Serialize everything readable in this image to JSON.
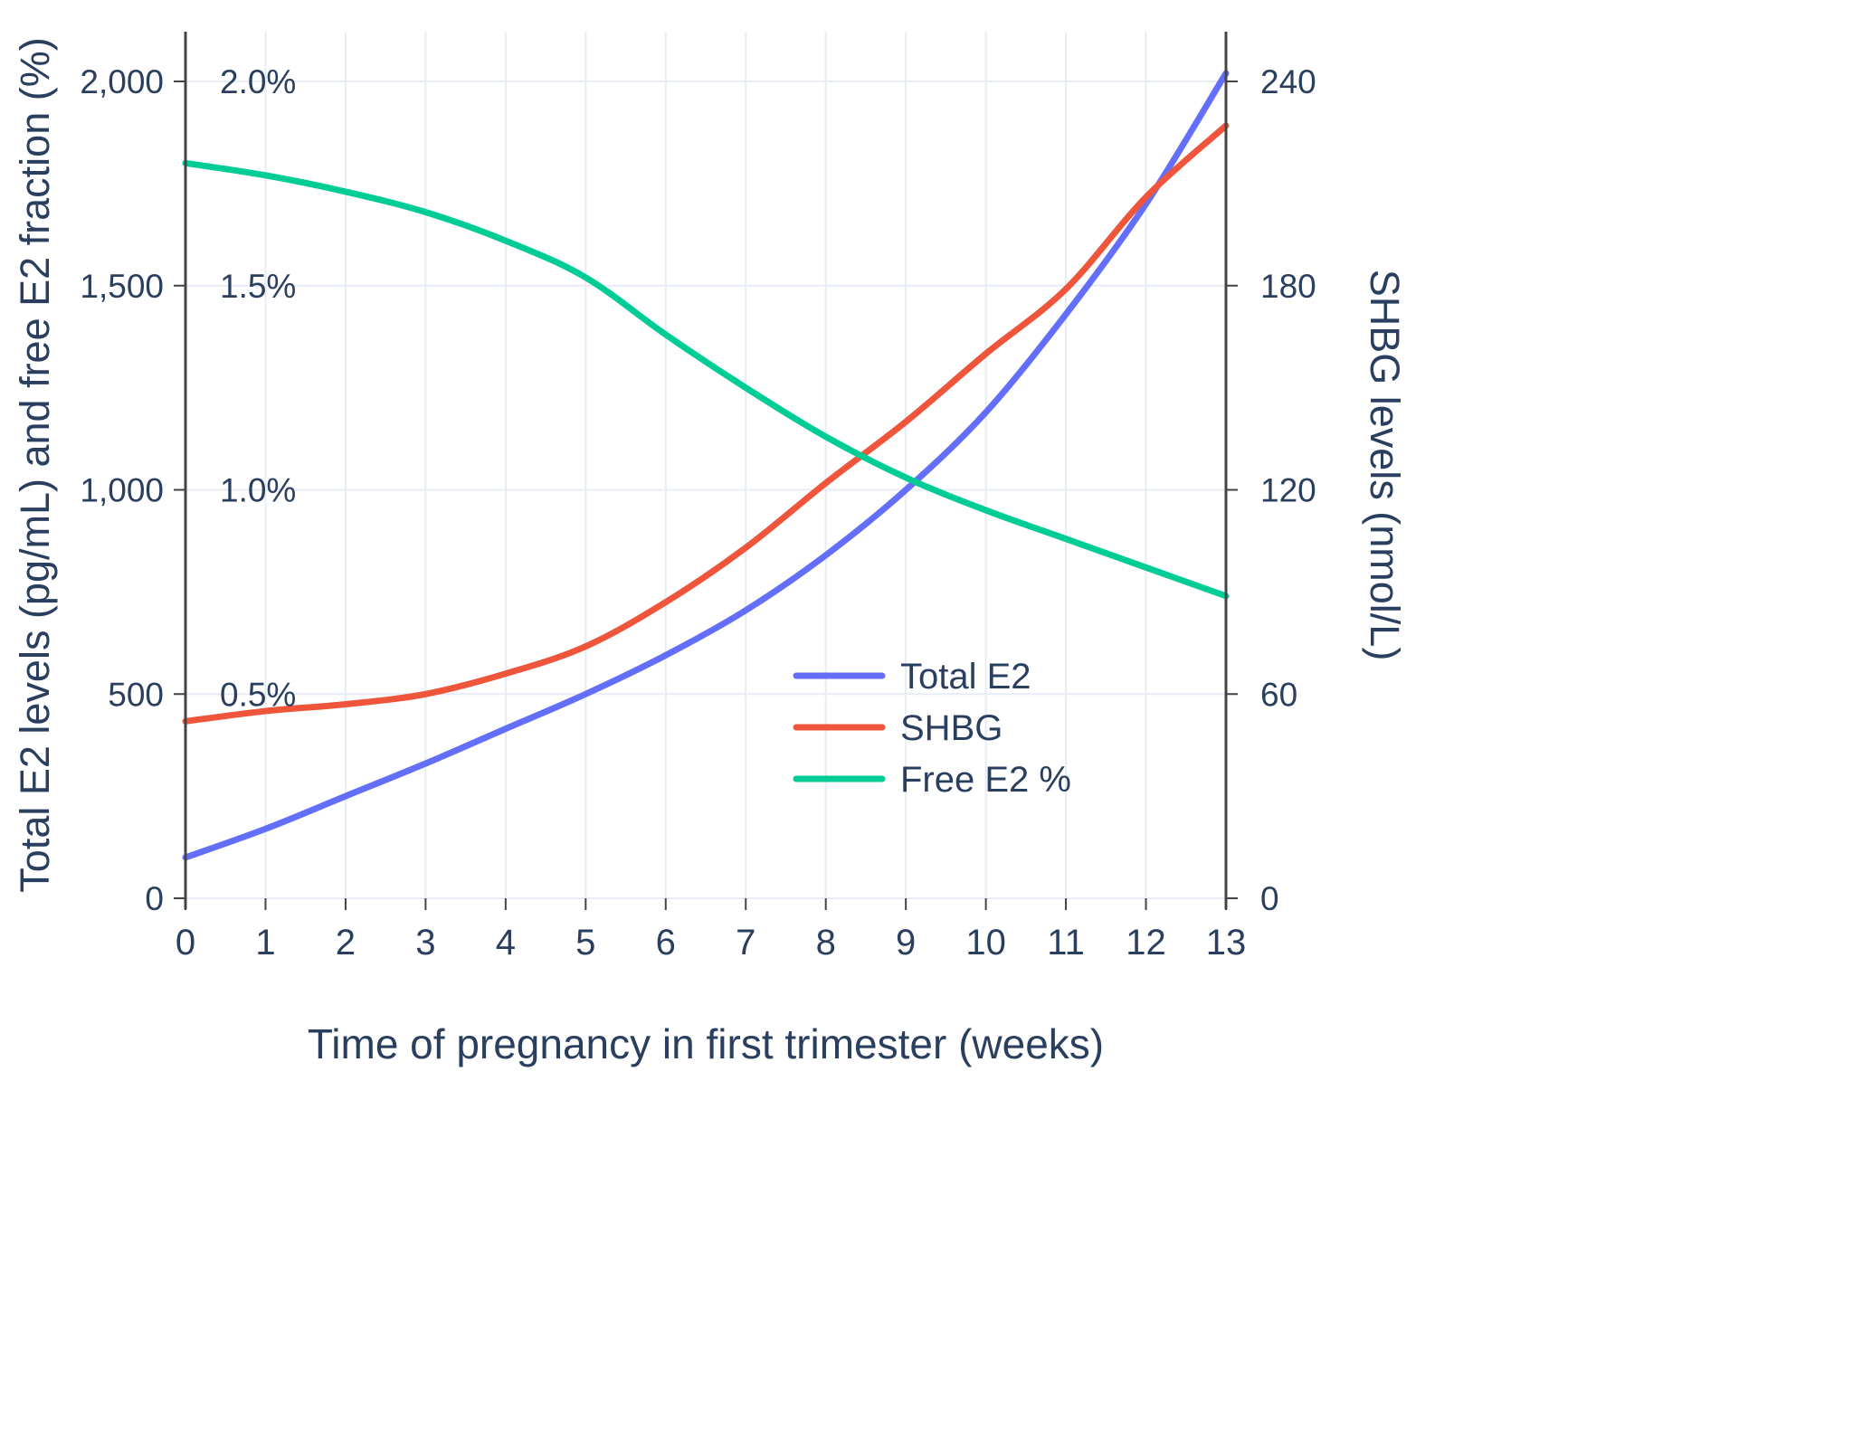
{
  "chart_data": {
    "type": "line",
    "title": "",
    "xlabel": "Time of pregnancy in first trimester (weeks)",
    "ylabel_left": "Total E2 levels (pg/mL) and free E2 fraction (%)",
    "ylabel_right": "SHBG levels (nmol/L)",
    "x": [
      0,
      1,
      2,
      3,
      4,
      5,
      6,
      7,
      8,
      9,
      10,
      11,
      12,
      13
    ],
    "x_tick_labels": [
      "0",
      "1",
      "2",
      "3",
      "4",
      "5",
      "6",
      "7",
      "8",
      "9",
      "10",
      "11",
      "12",
      "13"
    ],
    "left_axis": {
      "ticks": [
        0,
        500,
        1000,
        1500,
        2000
      ],
      "tick_labels": [
        "0",
        "500",
        "1,000",
        "1,500",
        "2,000"
      ],
      "range": [
        0,
        2122
      ]
    },
    "pct_axis": {
      "ticks": [
        0.5,
        1.0,
        1.5,
        2.0
      ],
      "tick_labels": [
        "0.5%",
        "1.0%",
        "1.5%",
        "2.0%"
      ],
      "scale_to_left": 1000
    },
    "right_axis": {
      "ticks": [
        0,
        60,
        120,
        180,
        240
      ],
      "tick_labels": [
        "0",
        "60",
        "120",
        "180",
        "240"
      ],
      "range": [
        0,
        255
      ]
    },
    "grid": true,
    "legend_position": "inside-right",
    "legend": [
      "Total E2",
      "SHBG",
      "Free E2 %"
    ],
    "series": [
      {
        "name": "Total E2",
        "axis": "left",
        "units": "pg/mL",
        "color": "#636EFA",
        "values": [
          100,
          170,
          250,
          330,
          415,
          500,
          595,
          705,
          840,
          1000,
          1190,
          1430,
          1700,
          2020
        ]
      },
      {
        "name": "SHBG",
        "axis": "right",
        "units": "nmol/L",
        "color": "#EF553B",
        "values": [
          52,
          55,
          57,
          60,
          66,
          74,
          87,
          103,
          122,
          140,
          160,
          179,
          206,
          227
        ]
      },
      {
        "name": "Free E2 %",
        "axis": "pct",
        "units": "%",
        "color": "#00CC96",
        "values": [
          1.8,
          1.77,
          1.73,
          1.68,
          1.61,
          1.52,
          1.38,
          1.25,
          1.13,
          1.03,
          0.95,
          0.88,
          0.81,
          0.74
        ]
      }
    ],
    "colors": {
      "grid": "#e7ecf5",
      "axis_line": "#444444",
      "text": "#2a3f5f",
      "background": "#ffffff"
    }
  }
}
